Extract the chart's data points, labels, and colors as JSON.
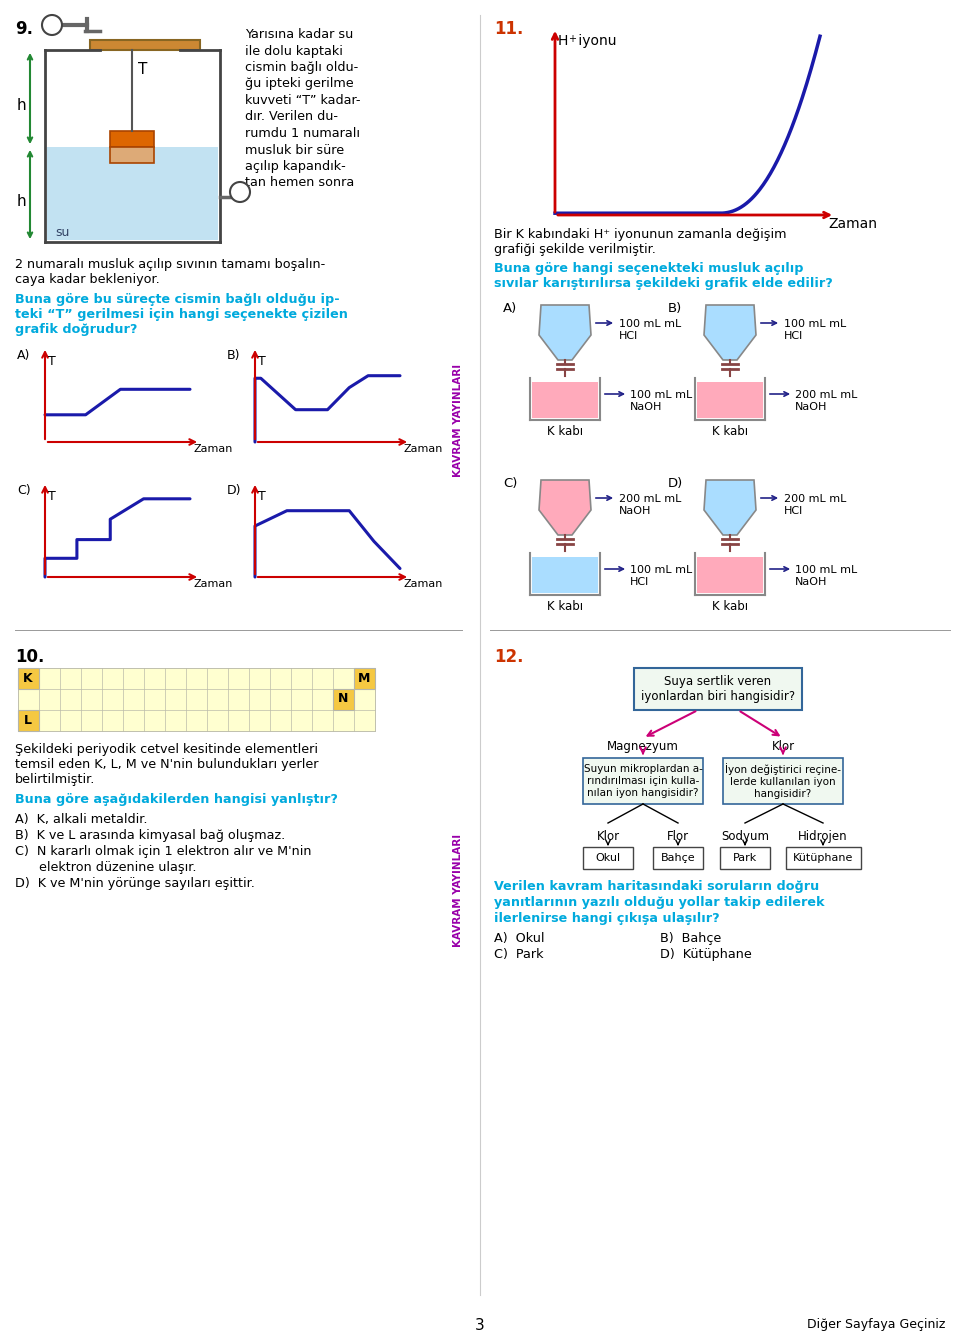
{
  "bg_color": "#ffffff",
  "page_number": "3",
  "footer_text": "Diğer Sayfaya Geçiniz",
  "kavram_color": "#9900aa",
  "line_color": "#1a1aaa",
  "axis_color": "#cc0000",
  "question_color": "#00aadd",
  "text_color": "#000000",
  "pink_color": "#ee3399",
  "q9_text_lines": [
    "Yarısına kadar su",
    "ile dolu kaptaki",
    "cismin bağlı oldu-",
    "ğu ipteki gerilme",
    "kuvveti “T” kadar-",
    "dır. Verilen du-",
    "rumdu 1 numaralı",
    "musluk bir süre",
    "açılıp kapandık-",
    "tan hemen sonra"
  ]
}
